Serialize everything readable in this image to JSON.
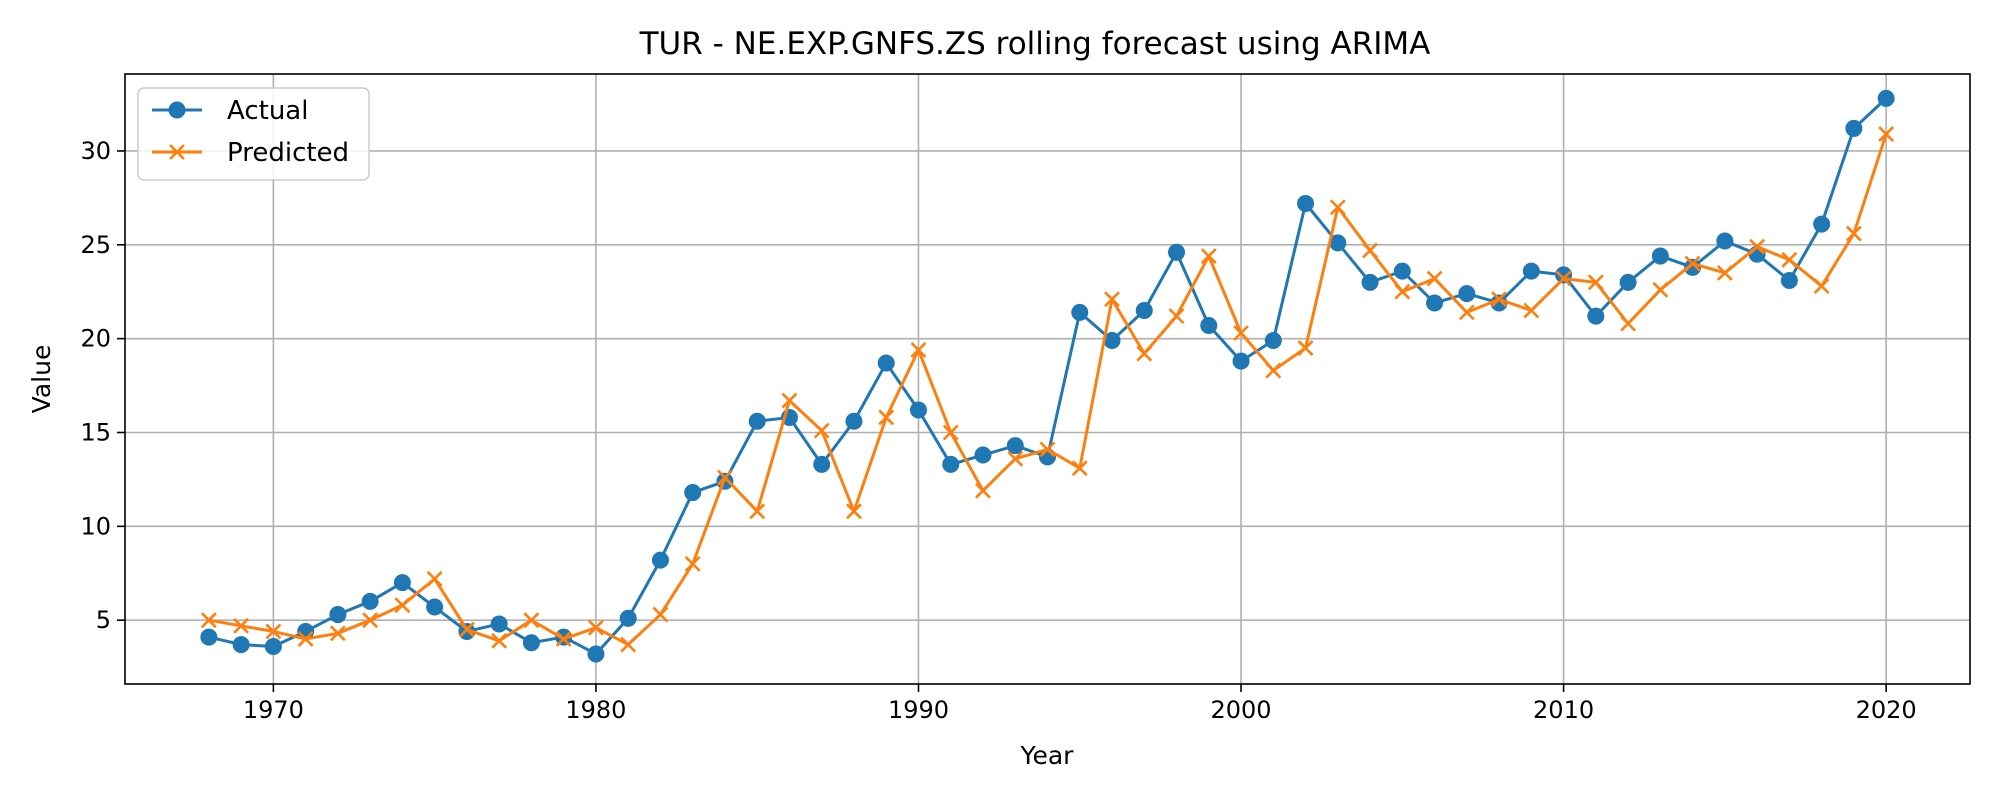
{
  "chart_data": {
    "type": "line",
    "title": "TUR - NE.EXP.GNFS.ZS rolling forecast using ARIMA",
    "xlabel": "Year",
    "ylabel": "Value",
    "xlim": [
      1965.4,
      2022.6
    ],
    "ylim": [
      1.6,
      34.1
    ],
    "x_ticks": [
      1970,
      1980,
      1990,
      2000,
      2010,
      2020
    ],
    "y_ticks": [
      5,
      10,
      15,
      20,
      25,
      30
    ],
    "grid": true,
    "legend_position": "upper-left",
    "x": [
      1968,
      1969,
      1970,
      1971,
      1972,
      1973,
      1974,
      1975,
      1976,
      1977,
      1978,
      1979,
      1980,
      1981,
      1982,
      1983,
      1984,
      1985,
      1986,
      1987,
      1988,
      1989,
      1990,
      1991,
      1992,
      1993,
      1994,
      1995,
      1996,
      1997,
      1998,
      1999,
      2000,
      2001,
      2002,
      2003,
      2004,
      2005,
      2006,
      2007,
      2008,
      2009,
      2010,
      2011,
      2012,
      2013,
      2014,
      2015,
      2016,
      2017,
      2018,
      2019,
      2020
    ],
    "series": [
      {
        "name": "Actual",
        "color": "#1f77b4",
        "marker": "circle",
        "values": [
          4.1,
          3.7,
          3.6,
          4.4,
          5.3,
          6.0,
          7.0,
          5.7,
          4.4,
          4.8,
          3.8,
          4.1,
          3.2,
          5.1,
          8.2,
          11.8,
          12.4,
          15.6,
          15.8,
          13.3,
          15.6,
          18.7,
          16.2,
          13.3,
          13.8,
          14.3,
          13.7,
          21.4,
          19.9,
          21.5,
          24.6,
          20.7,
          18.8,
          19.9,
          27.2,
          25.1,
          23.0,
          23.6,
          21.9,
          22.4,
          21.9,
          23.6,
          23.4,
          21.2,
          23.0,
          24.4,
          23.8,
          25.2,
          24.5,
          23.1,
          26.1,
          31.2,
          32.8
        ]
      },
      {
        "name": "Predicted",
        "color": "#ff7f0e",
        "marker": "x",
        "values": [
          5.0,
          4.7,
          4.4,
          4.0,
          4.3,
          5.0,
          5.8,
          7.2,
          4.5,
          3.9,
          5.0,
          4.0,
          4.6,
          3.7,
          5.3,
          8.0,
          12.6,
          10.8,
          16.7,
          15.1,
          10.8,
          15.8,
          19.4,
          15.0,
          11.9,
          13.6,
          14.1,
          13.1,
          22.1,
          19.2,
          21.2,
          24.4,
          20.3,
          18.3,
          19.5,
          27.0,
          24.7,
          22.5,
          23.2,
          21.4,
          22.1,
          21.5,
          23.2,
          23.0,
          20.8,
          22.6,
          24.0,
          23.5,
          24.9,
          24.2,
          22.8,
          25.6,
          30.9
        ]
      }
    ]
  }
}
